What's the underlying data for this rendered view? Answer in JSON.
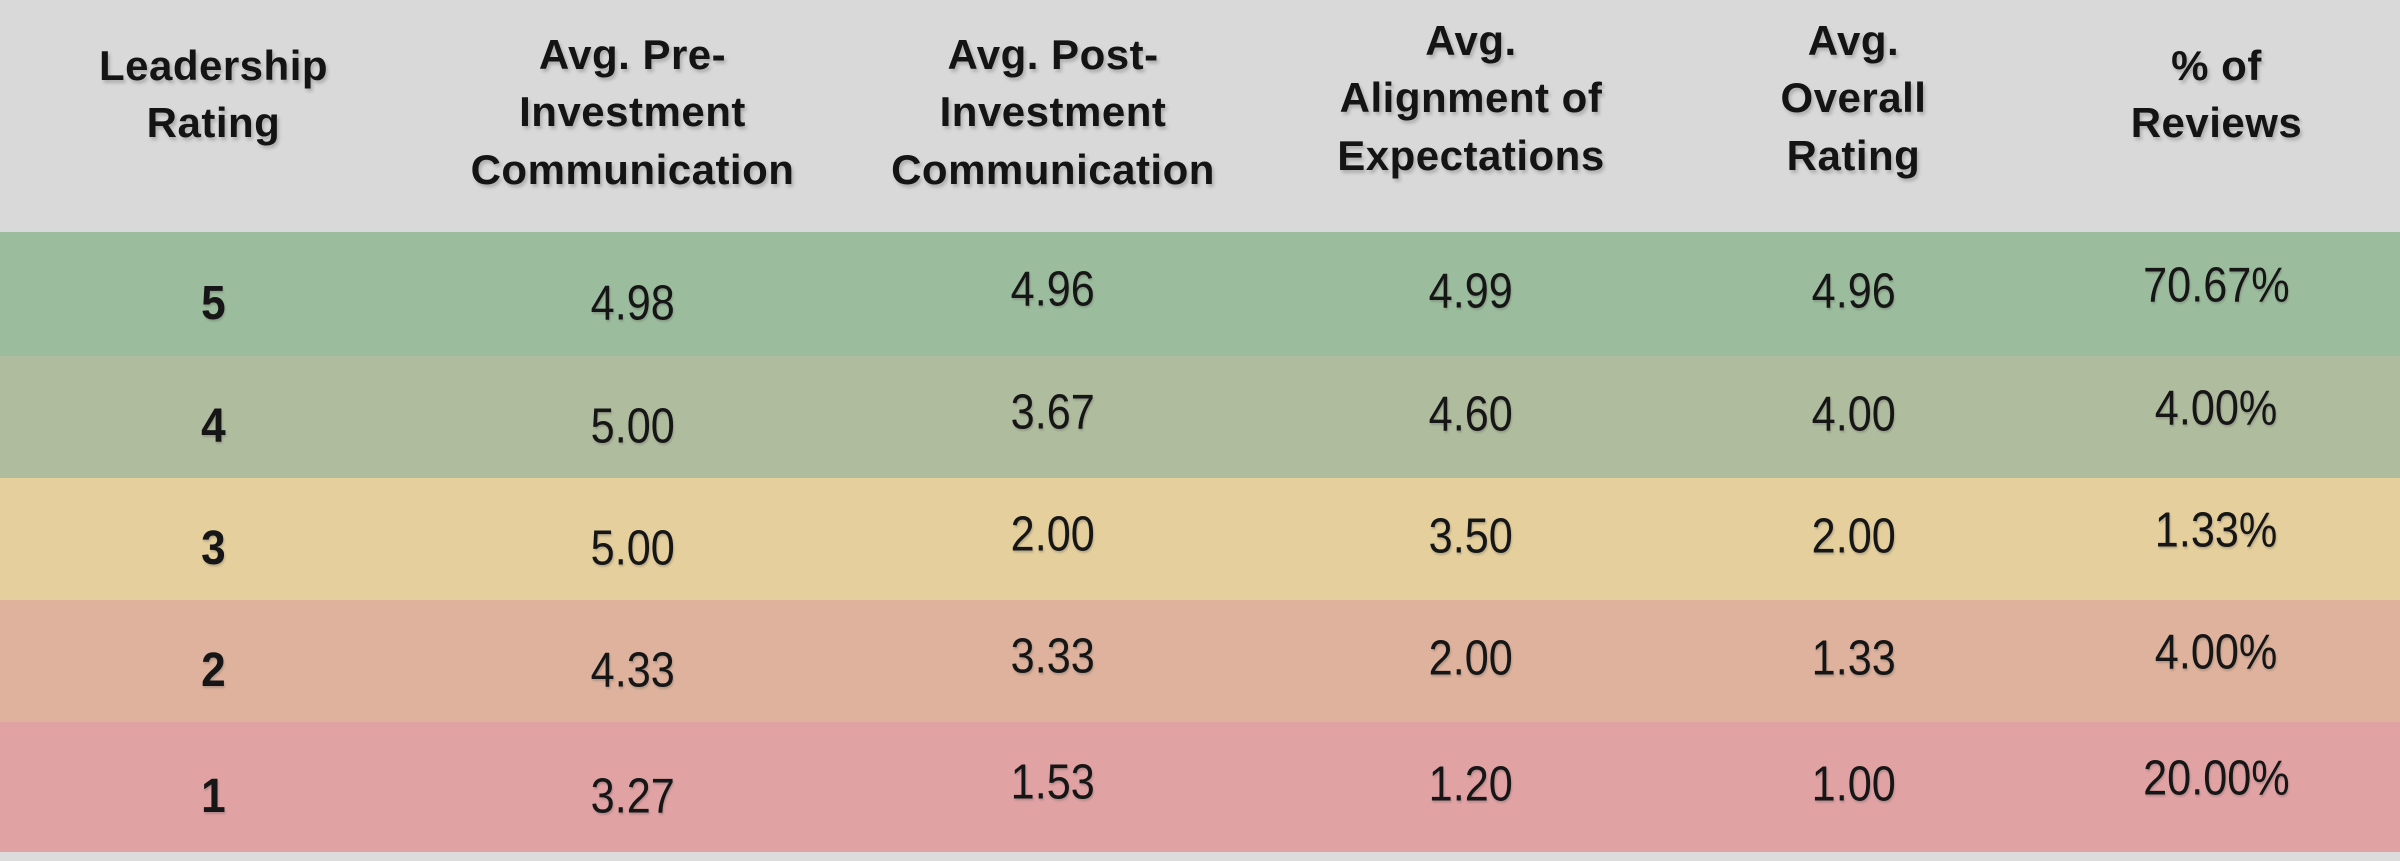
{
  "colors": {
    "page_background": "#d9d9d9",
    "header_background": "#d9d9d9",
    "text": "#161616",
    "row_green": "#9cbd9d",
    "row_light_green": "#b0bc9e",
    "row_tan": "#e4cf9d",
    "row_salmon": "#deb29c",
    "row_pink": "#e1a2a4",
    "bottom_strip": "#dcdcdc"
  },
  "table": {
    "header": [
      "Leadership\nRating",
      "Avg. Pre-\nInvestment\nCommunication",
      "Avg. Post-\nInvestment\nCommunication",
      "Avg.\nAlignment of\nExpectations",
      "Avg.\nOverall\nRating",
      "% of\nReviews"
    ],
    "rows": [
      {
        "bg": "#9cbd9d",
        "cells": [
          "5",
          "4.98",
          "4.96",
          "4.99",
          "4.96",
          "70.67%"
        ]
      },
      {
        "bg": "#b0bc9e",
        "cells": [
          "4",
          "5.00",
          "3.67",
          "4.60",
          "4.00",
          "4.00%"
        ]
      },
      {
        "bg": "#e4cf9d",
        "cells": [
          "3",
          "5.00",
          "2.00",
          "3.50",
          "2.00",
          "1.33%"
        ]
      },
      {
        "bg": "#deb29c",
        "cells": [
          "2",
          "4.33",
          "3.33",
          "2.00",
          "1.33",
          "4.00%"
        ]
      },
      {
        "bg": "#e1a2a4",
        "cells": [
          "1",
          "3.27",
          "1.53",
          "1.20",
          "1.00",
          "20.00%"
        ]
      }
    ]
  },
  "chart_data": {
    "type": "table",
    "columns": [
      "Leadership Rating",
      "Avg. Pre-Investment Communication",
      "Avg. Post-Investment Communication",
      "Avg. Alignment of Expectations",
      "Avg. Overall Rating",
      "% of Reviews"
    ],
    "rows": [
      [
        5,
        4.98,
        4.96,
        4.99,
        4.96,
        "70.67%"
      ],
      [
        4,
        5.0,
        3.67,
        4.6,
        4.0,
        "4.00%"
      ],
      [
        3,
        5.0,
        2.0,
        3.5,
        2.0,
        "1.33%"
      ],
      [
        2,
        4.33,
        3.33,
        2.0,
        1.33,
        "4.00%"
      ],
      [
        1,
        3.27,
        1.53,
        1.2,
        1.0,
        "20.00%"
      ]
    ],
    "row_color_coding": "rows tinted green (rating 5-4) to yellow (3) to red (2-1)"
  }
}
